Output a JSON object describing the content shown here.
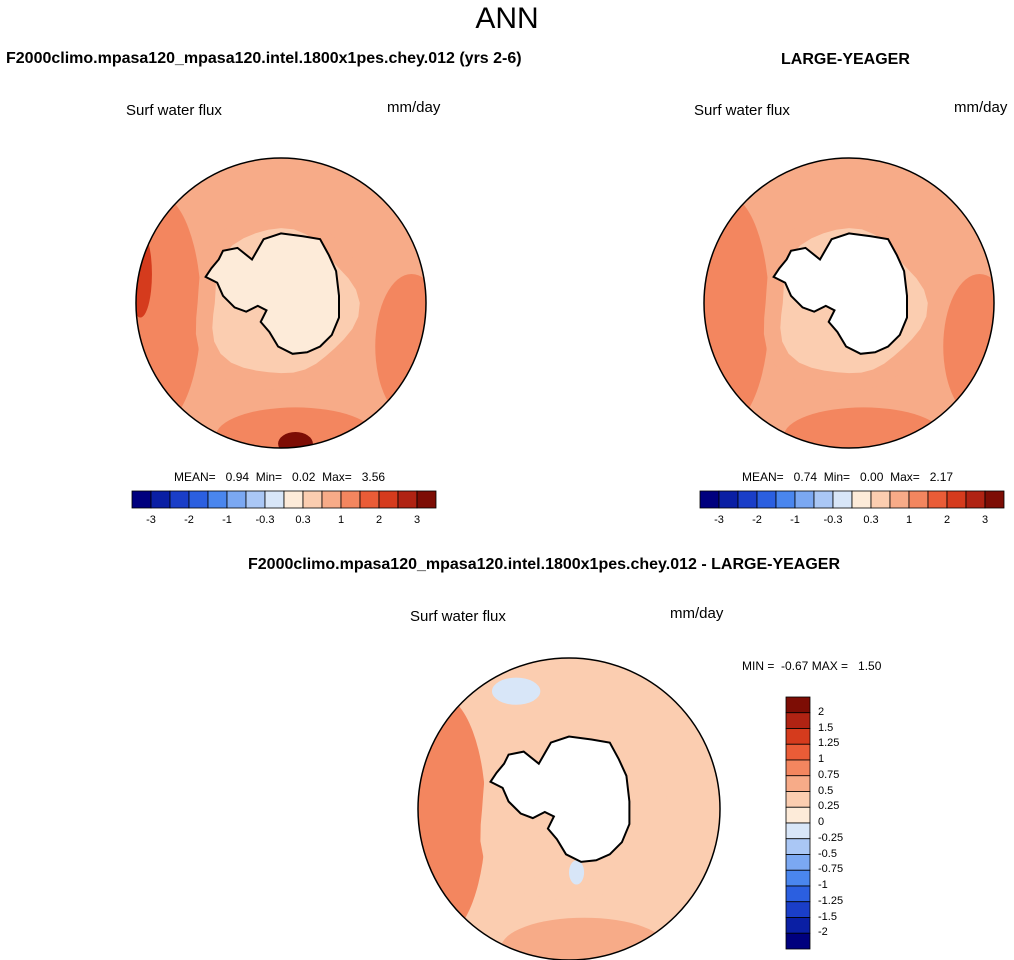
{
  "title": "ANN",
  "panels": {
    "model": {
      "title": "F2000climo.mpasa120_mpasa120.intel.1800x1pes.chey.012 (yrs 2-6)",
      "variable": "Surf water flux",
      "units": "mm/day",
      "stats": "MEAN=   0.94  Min=   0.02  Max=   3.56"
    },
    "obs": {
      "title": "LARGE-YEAGER",
      "variable": "Surf water flux",
      "units": "mm/day",
      "stats": "MEAN=   0.74  Min=   0.00  Max=   2.17"
    },
    "diff": {
      "title": "F2000climo.mpasa120_mpasa120.intel.1800x1pes.chey.012 - LARGE-YEAGER",
      "variable": "Surf water flux",
      "units": "mm/day",
      "stats": "MIN =  -0.67 MAX =   1.50"
    }
  },
  "colorbar_h": {
    "colors": [
      "#00007e",
      "#0a1fa4",
      "#1a3ec8",
      "#2b5fe0",
      "#4a86ee",
      "#7ba8f2",
      "#aac7f5",
      "#d8e6f8",
      "#fdebd9",
      "#fbcdb0",
      "#f7ab88",
      "#f3865f",
      "#ea5c37",
      "#d53b1d",
      "#b02313",
      "#7d0d05"
    ],
    "labels": [
      "-3",
      "-2",
      "-1",
      "-0.3",
      "0.3",
      "1",
      "2",
      "3"
    ]
  },
  "colorbar_v": {
    "colors": [
      "#00007e",
      "#0a1fa4",
      "#1a3ec8",
      "#2b5fe0",
      "#4a86ee",
      "#7ba8f2",
      "#aac7f5",
      "#d8e6f8",
      "#fdebd9",
      "#fbcdb0",
      "#f7ab88",
      "#f3865f",
      "#ea5c37",
      "#d53b1d",
      "#b02313",
      "#7d0d05"
    ],
    "labels": [
      "2",
      "1.5",
      "1.25",
      "1",
      "0.75",
      "0.5",
      "0.25",
      "0",
      "-0.25",
      "-0.5",
      "-0.75",
      "-1",
      "-1.25",
      "-1.5",
      "-2"
    ]
  },
  "map_colors": {
    "ocean_high": "#f3865f",
    "ocean_mid": "#f7ab88",
    "ocean_low": "#fbcdb0",
    "ocean_max": "#d53b1d",
    "ocean_peak": "#7d0d05",
    "land_model": "#fdebd9",
    "land_obs": "#ffffff",
    "diff_neg": "#d8e6f8",
    "coast": "#000000"
  }
}
